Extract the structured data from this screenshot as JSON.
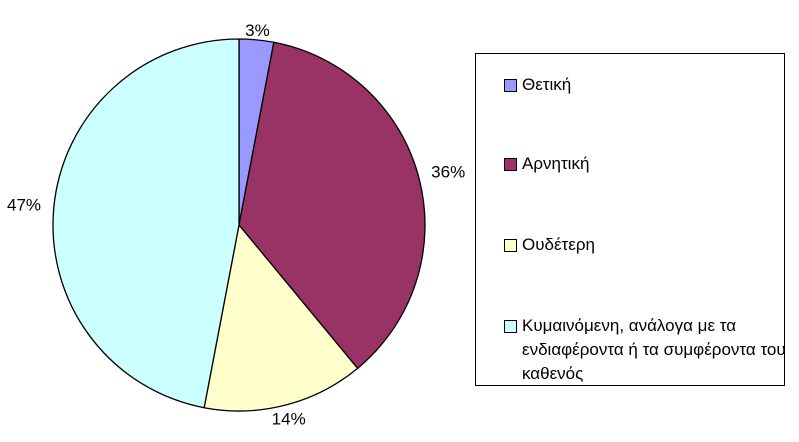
{
  "chart_data": {
    "type": "pie",
    "title": "",
    "categories": [
      "Θετική",
      "Αρνητική",
      "Ουδέτερη",
      "Κυμαινόμενη, ανάλογα με τα ενδιαφέροντα ή τα συμφέροντα του καθενός"
    ],
    "values": [
      3,
      36,
      14,
      47
    ],
    "data_labels": [
      "3%",
      "36%",
      "14%",
      "47%"
    ],
    "colors": [
      "#9999FF",
      "#993366",
      "#FFFFCC",
      "#CCFFFF"
    ],
    "legend_position": "right"
  }
}
